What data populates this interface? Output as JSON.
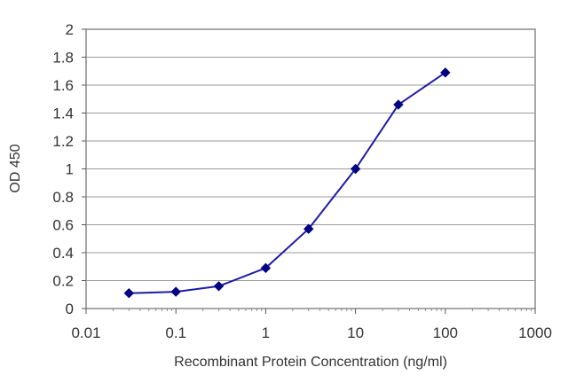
{
  "chart_data": {
    "type": "line",
    "title": "",
    "xlabel": "Recombinant Protein Concentration (ng/ml)",
    "ylabel": "OD 450",
    "x_scale": "log",
    "xlim": [
      0.01,
      1000
    ],
    "ylim": [
      0,
      2
    ],
    "x_ticks": [
      "0.01",
      "0.1",
      "1",
      "10",
      "100",
      "1000"
    ],
    "y_ticks": [
      "0",
      "0.2",
      "0.4",
      "0.6",
      "0.8",
      "1",
      "1.2",
      "1.4",
      "1.6",
      "1.8",
      "2"
    ],
    "grid": "horizontal",
    "legend": "none",
    "series": [
      {
        "color": "#1c1ca8",
        "points": [
          {
            "x": 0.03,
            "y": 0.11
          },
          {
            "x": 0.1,
            "y": 0.12
          },
          {
            "x": 0.3,
            "y": 0.16
          },
          {
            "x": 1,
            "y": 0.29
          },
          {
            "x": 3,
            "y": 0.57
          },
          {
            "x": 10,
            "y": 1.0
          },
          {
            "x": 30,
            "y": 1.46
          },
          {
            "x": 100,
            "y": 1.69
          }
        ]
      }
    ],
    "colors": {
      "plot_border": "#8a8a8a",
      "grid": "#9a9a9a",
      "marker": "#000080"
    }
  }
}
